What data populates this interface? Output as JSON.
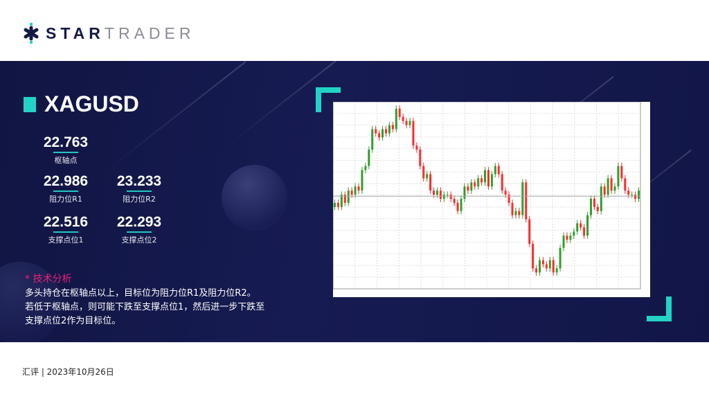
{
  "brand": {
    "part1": "STAR",
    "part2": "TRADER"
  },
  "symbol": "XAGUSD",
  "levels": {
    "pivot": {
      "value": "22.763",
      "label": "枢轴点"
    },
    "r1": {
      "value": "22.986",
      "label": "阻力位R1"
    },
    "r2": {
      "value": "23.233",
      "label": "阻力位R2"
    },
    "s1": {
      "value": "22.516",
      "label": "支撑点位1"
    },
    "s2": {
      "value": "22.293",
      "label": "支撑点位2"
    }
  },
  "analysis": {
    "title": "* 技术分析",
    "lines": [
      "多头持仓在枢轴点以上，目标位为阻力位R1及阻力位R2。",
      "若低于枢轴点，则可能下跌至支撑点位1，然后进一步下跌至",
      "支撑点位2作为目标位。"
    ]
  },
  "footer": "汇评 | 2023年10月26日",
  "colors": {
    "accent": "#22d3c5",
    "highlight": "#e8207a",
    "bull": "#2ca02c",
    "bear": "#ff2a2a",
    "background": "#141949"
  },
  "chart_data": {
    "type": "candlestick",
    "ylim": [
      20.5,
      25.0
    ],
    "closes": [
      22.6,
      22.5,
      22.8,
      22.6,
      22.9,
      22.8,
      23.0,
      22.9,
      23.4,
      23.5,
      23.9,
      24.4,
      24.3,
      24.2,
      24.4,
      24.3,
      24.5,
      24.4,
      24.9,
      24.7,
      24.6,
      24.5,
      24.6,
      24.0,
      23.9,
      23.5,
      23.2,
      23.3,
      22.9,
      22.8,
      22.9,
      22.7,
      22.8,
      22.8,
      22.7,
      22.6,
      22.4,
      22.7,
      23.0,
      22.9,
      23.1,
      23.0,
      23.2,
      23.1,
      23.4,
      23.0,
      23.3,
      23.5,
      23.3,
      22.9,
      22.8,
      22.6,
      22.3,
      22.4,
      22.3,
      23.1,
      22.2,
      21.6,
      21.0,
      20.9,
      21.2,
      21.1,
      21.0,
      21.2,
      20.9,
      21.0,
      21.5,
      21.8,
      21.7,
      21.8,
      21.9,
      22.1,
      22.0,
      21.8,
      22.3,
      22.7,
      22.5,
      22.4,
      23.0,
      22.8,
      23.2,
      22.9,
      23.0,
      23.5,
      23.2,
      22.9,
      22.8,
      22.8,
      22.7,
      22.9
    ]
  }
}
